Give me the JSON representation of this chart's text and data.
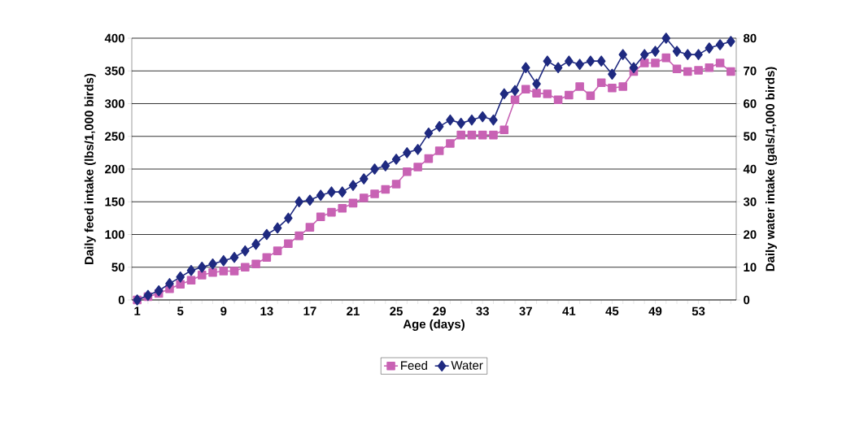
{
  "chart_data": {
    "type": "line",
    "xlabel": "Age (days)",
    "ylabel": "Daily feed intake (lbs/1,000 birds)",
    "y2label": "Daily water intake (gals/1,000 birds)",
    "categories": [
      "1",
      null,
      null,
      null,
      "5",
      null,
      null,
      null,
      "9",
      null,
      null,
      null,
      "13",
      null,
      null,
      null,
      "17",
      null,
      null,
      null,
      "21",
      null,
      null,
      null,
      "25",
      null,
      null,
      null,
      "29",
      null,
      null,
      null,
      "33",
      null,
      null,
      null,
      "37",
      null,
      null,
      null,
      "41",
      null,
      null,
      null,
      "45",
      null,
      null,
      null,
      "49",
      null,
      null,
      null,
      "53",
      null,
      null,
      null
    ],
    "ylim": [
      0,
      400
    ],
    "yticks": [
      0,
      50,
      100,
      150,
      200,
      250,
      300,
      350,
      400
    ],
    "y2lim": [
      0,
      80
    ],
    "y2ticks": [
      0,
      10,
      20,
      30,
      40,
      50,
      60,
      70,
      80
    ],
    "grid": "y",
    "legend": "bottom",
    "series": [
      {
        "name": "Feed",
        "color": "#c862b4",
        "marker": "square",
        "values": [
          0,
          5,
          10,
          17,
          24,
          30,
          38,
          42,
          44,
          44,
          50,
          55,
          65,
          75,
          86,
          98,
          111,
          127,
          134,
          140,
          148,
          156,
          162,
          169,
          177,
          196,
          203,
          216,
          228,
          239,
          252,
          252,
          252,
          252,
          260,
          306,
          322,
          316,
          315,
          306,
          313,
          326,
          312,
          332,
          324,
          326,
          349,
          362,
          362,
          370,
          353,
          349,
          351,
          355,
          362,
          349
        ]
      },
      {
        "name": "Water",
        "color": "#1f2a80",
        "marker": "diamond",
        "axis": "y2",
        "values": [
          0,
          1.4,
          2.8,
          5,
          7,
          9,
          10,
          11,
          12,
          13,
          15,
          17,
          20,
          22,
          25,
          30,
          30.5,
          32,
          33,
          33,
          35,
          37,
          40,
          41,
          43,
          45,
          46,
          51,
          53,
          55,
          54,
          55,
          56,
          55,
          63,
          64,
          71,
          66,
          73,
          71,
          73,
          72,
          73,
          73,
          69,
          75,
          71,
          75,
          76,
          80,
          76,
          75,
          75,
          77,
          78,
          79
        ]
      }
    ]
  }
}
